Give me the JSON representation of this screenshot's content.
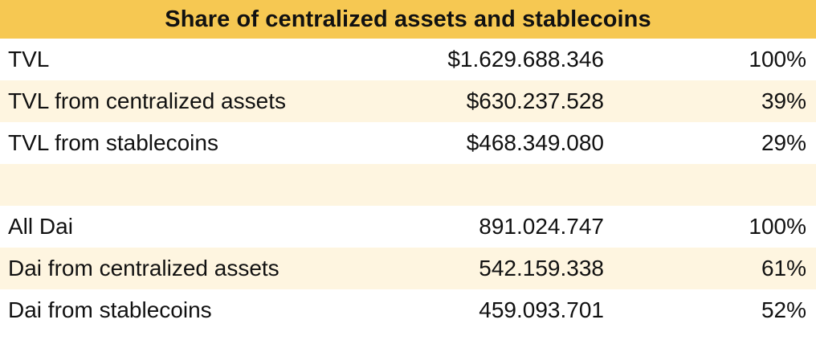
{
  "table": {
    "title": "Share of centralized assets and stablecoins",
    "rows": [
      {
        "label": "TVL",
        "value": "$1.629.688.346",
        "pct": "100%"
      },
      {
        "label": "TVL from centralized assets",
        "value": "$630.237.528",
        "pct": "39%"
      },
      {
        "label": "TVL from stablecoins",
        "value": "$468.349.080",
        "pct": "29%"
      },
      {
        "label": "",
        "value": "",
        "pct": ""
      },
      {
        "label": "All Dai",
        "value": "891.024.747",
        "pct": "100%"
      },
      {
        "label": "Dai from centralized assets",
        "value": "542.159.338",
        "pct": "61%"
      },
      {
        "label": "Dai from stablecoins",
        "value": "459.093.701",
        "pct": "52%"
      }
    ]
  },
  "colors": {
    "header_fill": "#f6c852",
    "band_fill": "#fef5e0",
    "white_fill": "#ffffff",
    "text": "#111111"
  }
}
